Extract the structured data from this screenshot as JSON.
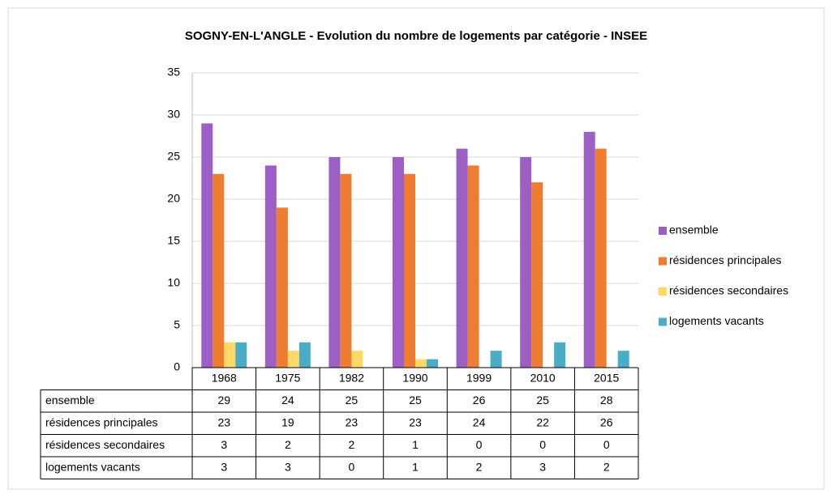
{
  "chart_data": {
    "type": "bar",
    "title": "SOGNY-EN-L'ANGLE - Evolution du nombre de logements par catégorie - INSEE",
    "categories": [
      "1968",
      "1975",
      "1982",
      "1990",
      "1999",
      "2010",
      "2015"
    ],
    "series": [
      {
        "name": "ensemble",
        "color": "#9e5fc4",
        "values": [
          29,
          24,
          25,
          25,
          26,
          25,
          28
        ]
      },
      {
        "name": "résidences principales",
        "color": "#ed7d31",
        "values": [
          23,
          19,
          23,
          23,
          24,
          22,
          26
        ]
      },
      {
        "name": "résidences secondaires",
        "color": "#ffd966",
        "values": [
          3,
          2,
          2,
          1,
          0,
          0,
          0
        ]
      },
      {
        "name": "logements vacants",
        "color": "#4bacc6",
        "values": [
          3,
          3,
          0,
          1,
          2,
          3,
          2
        ]
      }
    ],
    "ylim": [
      0,
      35
    ],
    "yticks": [
      0,
      5,
      10,
      15,
      20,
      25,
      30,
      35
    ],
    "grid": true,
    "legend": "right"
  }
}
